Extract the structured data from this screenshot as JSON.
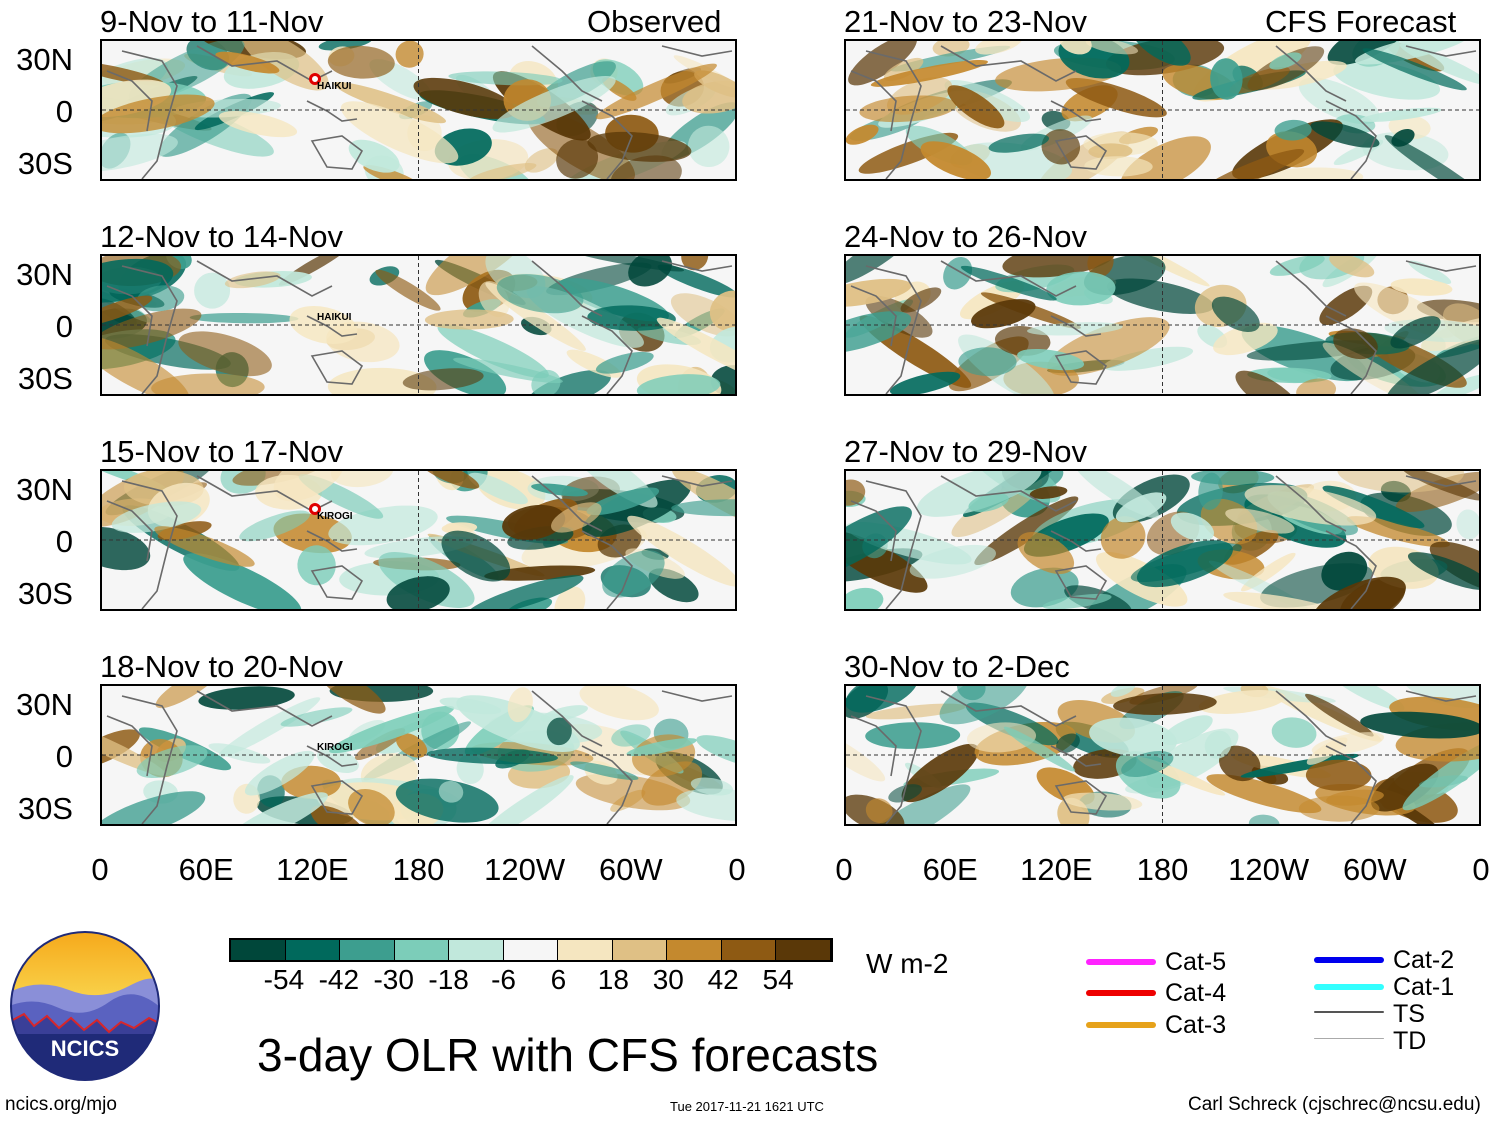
{
  "chart_data": {
    "type": "heatmap",
    "title": "3-day OLR with CFS forecasts",
    "units": "W m-2",
    "colorbar": {
      "ticks": [
        "-54",
        "-42",
        "-30",
        "-18",
        "-6",
        "6",
        "18",
        "30",
        "42",
        "54"
      ],
      "colors": [
        "#00473a",
        "#00695c",
        "#3d9e8f",
        "#7ccdb9",
        "#c1e8dc",
        "#f6f6f6",
        "#f5e6c0",
        "#dfc085",
        "#c4892e",
        "#8e5a13",
        "#5a3808"
      ]
    },
    "x_ticks": [
      "0",
      "60E",
      "120E",
      "180",
      "120W",
      "60W",
      "0"
    ],
    "y_ticks": [
      "30N",
      "0",
      "30S"
    ],
    "column_headers": {
      "left": "Observed",
      "right": "CFS Forecast"
    },
    "panels": [
      {
        "period": "9-Nov to 11-Nov",
        "source": "Observed",
        "storms": [
          "HAIKUI"
        ]
      },
      {
        "period": "12-Nov to 14-Nov",
        "source": "Observed",
        "storms": [
          "HAIKUI"
        ]
      },
      {
        "period": "15-Nov to 17-Nov",
        "source": "Observed",
        "storms": [
          "KIROGI"
        ]
      },
      {
        "period": "18-Nov to 20-Nov",
        "source": "Observed",
        "storms": [
          "KIROGI"
        ]
      },
      {
        "period": "21-Nov to 23-Nov",
        "source": "CFS Forecast",
        "storms": []
      },
      {
        "period": "24-Nov to 26-Nov",
        "source": "CFS Forecast",
        "storms": []
      },
      {
        "period": "27-Nov to 29-Nov",
        "source": "CFS Forecast",
        "storms": []
      },
      {
        "period": "30-Nov to 2-Dec",
        "source": "CFS Forecast",
        "storms": []
      }
    ]
  },
  "legend": {
    "items": [
      {
        "label": "Cat-5",
        "color": "#ff22ff"
      },
      {
        "label": "Cat-4",
        "color": "#ee0000"
      },
      {
        "label": "Cat-3",
        "color": "#e6a21a"
      },
      {
        "label": "Cat-2",
        "color": "#0000ee"
      },
      {
        "label": "Cat-1",
        "color": "#33ffff"
      },
      {
        "label": "TS",
        "color": "#555555"
      },
      {
        "label": "TD",
        "color": "#aaaaaa"
      }
    ]
  },
  "logo": {
    "text": "NCICS"
  },
  "footer": {
    "url": "ncics.org/mjo",
    "timestamp": "Tue 2017-11-21 1621 UTC",
    "credit": "Carl Schreck (cjschrec@ncsu.edu)"
  }
}
